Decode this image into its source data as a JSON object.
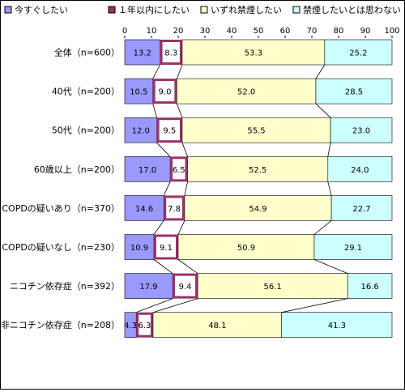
{
  "chart_data": {
    "type": "bar",
    "orientation": "horizontal",
    "stacked": true,
    "xlim": [
      0,
      100
    ],
    "x_ticks": [
      "0",
      "10",
      "20",
      "30",
      "40",
      "50",
      "60",
      "70",
      "80",
      "90",
      "100"
    ],
    "grid": false,
    "legend_position": "top",
    "categories": [
      "全体（n=600）",
      "40代（n=200）",
      "50代（n=200）",
      "60歳以上（n=200）",
      "COPDの疑いあり（n=370）",
      "COPDの疑いなし（n=230）",
      "ニコチン依存症（n=392）",
      "非ニコチン依存症（n=208）"
    ],
    "series": [
      {
        "name": "今すぐしたい",
        "color": "#9999ff",
        "values": [
          13.2,
          10.5,
          12.0,
          17.0,
          14.6,
          10.9,
          17.9,
          4.3
        ]
      },
      {
        "name": "１年以内にしたい",
        "color": "#993366",
        "values": [
          8.3,
          9.0,
          9.5,
          6.5,
          7.8,
          9.1,
          9.4,
          6.3
        ]
      },
      {
        "name": "いずれ禁煙したい",
        "color": "#ffffcc",
        "values": [
          53.3,
          52.0,
          55.5,
          52.5,
          54.9,
          50.9,
          56.1,
          48.1
        ]
      },
      {
        "name": "禁煙したいとは思わない",
        "color": "#ccffff",
        "values": [
          25.2,
          28.5,
          23.0,
          24.0,
          22.7,
          29.1,
          16.6,
          41.3
        ]
      }
    ],
    "value_labels": [
      [
        "13.2",
        "8.3",
        "53.3",
        "25.2"
      ],
      [
        "10.5",
        "9.0",
        "52.0",
        "28.5"
      ],
      [
        "12.0",
        "9.5",
        "55.5",
        "23.0"
      ],
      [
        "17.0",
        "6.5",
        "52.5",
        "24.0"
      ],
      [
        "14.6",
        "7.8",
        "54.9",
        "22.7"
      ],
      [
        "10.9",
        "9.1",
        "50.9",
        "29.1"
      ],
      [
        "17.9",
        "9.4",
        "56.1",
        "16.6"
      ],
      [
        "4.3",
        "6.3",
        "48.1",
        "41.3"
      ]
    ]
  }
}
